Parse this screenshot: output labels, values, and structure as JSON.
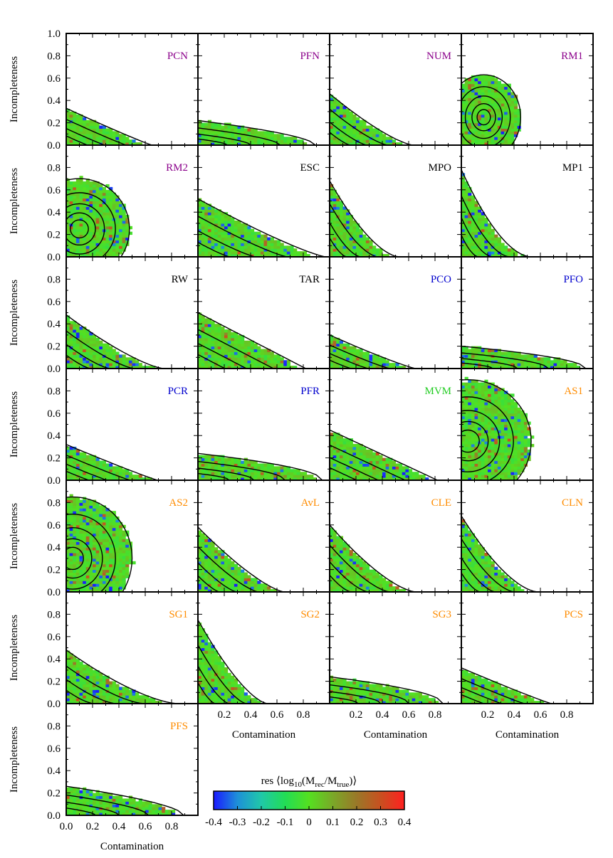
{
  "chart_data": {
    "type": "heatmap",
    "description_axes": {
      "xlabel": "Contamination",
      "ylabel": "Incompleteness",
      "xlim": [
        0.0,
        1.0
      ],
      "ylim": [
        0.0,
        1.0
      ],
      "x_ticks": [
        "0.0",
        "0.2",
        "0.4",
        "0.6",
        "0.8"
      ],
      "y_ticks_top_row": [
        "0.0",
        "0.2",
        "0.4",
        "0.6",
        "0.8",
        "1.0"
      ],
      "y_ticks": [
        "0.0",
        "0.2",
        "0.4",
        "0.6",
        "0.8"
      ],
      "x_ticks_short": [
        "0.2",
        "0.4",
        "0.6",
        "0.8"
      ]
    },
    "colorbar": {
      "label_prefix": "res ⟨log",
      "label_sub1": "10",
      "label_mid": "(M",
      "label_sub2": "rec",
      "label_slash": "/M",
      "label_sub3": "true",
      "label_suffix": ")⟩",
      "range": [
        -0.4,
        0.4
      ],
      "ticks": [
        "-0.4",
        "-0.3",
        "-0.2",
        "-0.1",
        "0",
        "0.1",
        "0.2",
        "0.3",
        "0.4"
      ],
      "colors": [
        "#1a1aff",
        "#1e90d8",
        "#20c8a8",
        "#22dd55",
        "#55e020",
        "#7aa828",
        "#9a7828",
        "#c85020",
        "#ff2020"
      ]
    },
    "panels": [
      {
        "name": "PCN",
        "color": "#8b008b",
        "shape": "steep",
        "cmax": 0.62,
        "imax": 0.33,
        "decay": 1.6
      },
      {
        "name": "PFN",
        "color": "#8b008b",
        "shape": "flat",
        "cmax": 0.85,
        "imax": 0.22,
        "decay": 0.9
      },
      {
        "name": "NUM",
        "color": "#8b008b",
        "shape": "steep",
        "cmax": 0.6,
        "imax": 0.46,
        "decay": 2.0
      },
      {
        "name": "RM1",
        "color": "#8b008b",
        "shape": "blob",
        "cx": 0.17,
        "cy": 0.25,
        "rx": 0.28,
        "ry": 0.38
      },
      {
        "name": "RM2",
        "color": "#8b008b",
        "shape": "blob",
        "cx": 0.1,
        "cy": 0.25,
        "rx": 0.38,
        "ry": 0.45
      },
      {
        "name": "ESC",
        "color": "#000000",
        "shape": "steep",
        "cmax": 0.92,
        "imax": 0.52,
        "decay": 1.8
      },
      {
        "name": "MPO",
        "color": "#000000",
        "shape": "steep",
        "cmax": 0.5,
        "imax": 0.68,
        "decay": 2.4
      },
      {
        "name": "MP1",
        "color": "#000000",
        "shape": "steep",
        "cmax": 0.5,
        "imax": 0.78,
        "decay": 2.6
      },
      {
        "name": "RW",
        "color": "#000000",
        "shape": "steep",
        "cmax": 0.7,
        "imax": 0.48,
        "decay": 2.0
      },
      {
        "name": "TAR",
        "color": "#000000",
        "shape": "steep",
        "cmax": 0.78,
        "imax": 0.5,
        "decay": 1.5
      },
      {
        "name": "PCO",
        "color": "#0000cd",
        "shape": "steep",
        "cmax": 0.62,
        "imax": 0.3,
        "decay": 1.7
      },
      {
        "name": "PFO",
        "color": "#0000cd",
        "shape": "flat",
        "cmax": 0.9,
        "imax": 0.2,
        "decay": 0.8
      },
      {
        "name": "PCR",
        "color": "#0000cd",
        "shape": "steep",
        "cmax": 0.66,
        "imax": 0.32,
        "decay": 1.6
      },
      {
        "name": "PFR",
        "color": "#0000cd",
        "shape": "flat",
        "cmax": 0.9,
        "imax": 0.24,
        "decay": 0.8
      },
      {
        "name": "MVM",
        "color": "#22cc22",
        "shape": "steep",
        "cmax": 0.78,
        "imax": 0.45,
        "decay": 1.5
      },
      {
        "name": "AS1",
        "color": "#ff8c00",
        "shape": "blob",
        "cx": 0.05,
        "cy": 0.35,
        "rx": 0.48,
        "ry": 0.55
      },
      {
        "name": "AS2",
        "color": "#ff8c00",
        "shape": "blob",
        "cx": 0.05,
        "cy": 0.3,
        "rx": 0.45,
        "ry": 0.55
      },
      {
        "name": "AvL",
        "color": "#ff8c00",
        "shape": "steep",
        "cmax": 0.62,
        "imax": 0.58,
        "decay": 2.0
      },
      {
        "name": "CLE",
        "color": "#ff8c00",
        "shape": "steep",
        "cmax": 0.62,
        "imax": 0.6,
        "decay": 2.2
      },
      {
        "name": "CLN",
        "color": "#ff8c00",
        "shape": "steep",
        "cmax": 0.55,
        "imax": 0.68,
        "decay": 2.4
      },
      {
        "name": "SG1",
        "color": "#ff8c00",
        "shape": "steep",
        "cmax": 0.8,
        "imax": 0.48,
        "decay": 2.2
      },
      {
        "name": "SG2",
        "color": "#ff8c00",
        "shape": "steep",
        "cmax": 0.5,
        "imax": 0.75,
        "decay": 2.2
      },
      {
        "name": "SG3",
        "color": "#ff8c00",
        "shape": "flat",
        "cmax": 0.82,
        "imax": 0.24,
        "decay": 0.8
      },
      {
        "name": "PCS",
        "color": "#ff8c00",
        "shape": "steep",
        "cmax": 0.65,
        "imax": 0.32,
        "decay": 1.6
      },
      {
        "name": "PFS",
        "color": "#ff8c00",
        "shape": "flat",
        "cmax": 0.85,
        "imax": 0.26,
        "decay": 0.9
      }
    ]
  }
}
